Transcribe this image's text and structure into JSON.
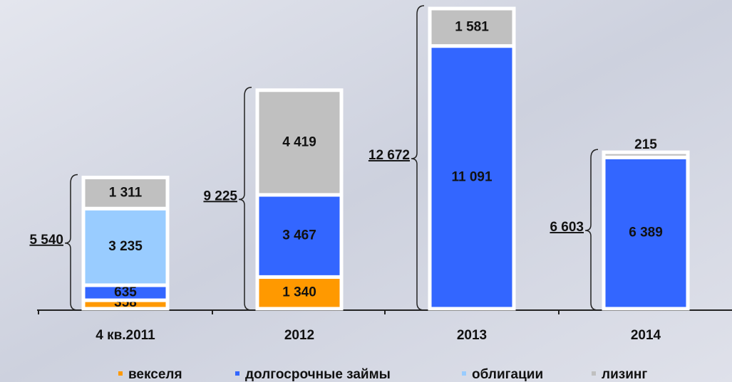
{
  "chart_data": {
    "type": "stacked-bar",
    "categories": [
      "4 кв.2011",
      "2012",
      "2013",
      "2014"
    ],
    "series": [
      {
        "name": "векселя",
        "color": "#ff9900",
        "values": [
          358,
          1340,
          null,
          null
        ],
        "value_labels": [
          "358",
          "1 340",
          null,
          null
        ]
      },
      {
        "name": "долгосрочные займы",
        "color": "#3366ff",
        "values": [
          635,
          3467,
          11091,
          6389
        ],
        "value_labels": [
          "635",
          "3 467",
          "11 091",
          "6 389"
        ]
      },
      {
        "name": "облигации",
        "color": "#99ccff",
        "values": [
          3235,
          null,
          null,
          null
        ],
        "value_labels": [
          "3 235",
          null,
          null,
          null
        ]
      },
      {
        "name": "лизинг",
        "color": "#c0c0c0",
        "values": [
          1311,
          4419,
          1581,
          215
        ],
        "value_labels": [
          "1 311",
          "4 419",
          "1 581",
          "215"
        ]
      }
    ],
    "totals": {
      "values": [
        5540,
        9225,
        12672,
        6603
      ],
      "value_labels": [
        "5 540",
        "9 225",
        "12 672",
        "6 603"
      ]
    }
  }
}
